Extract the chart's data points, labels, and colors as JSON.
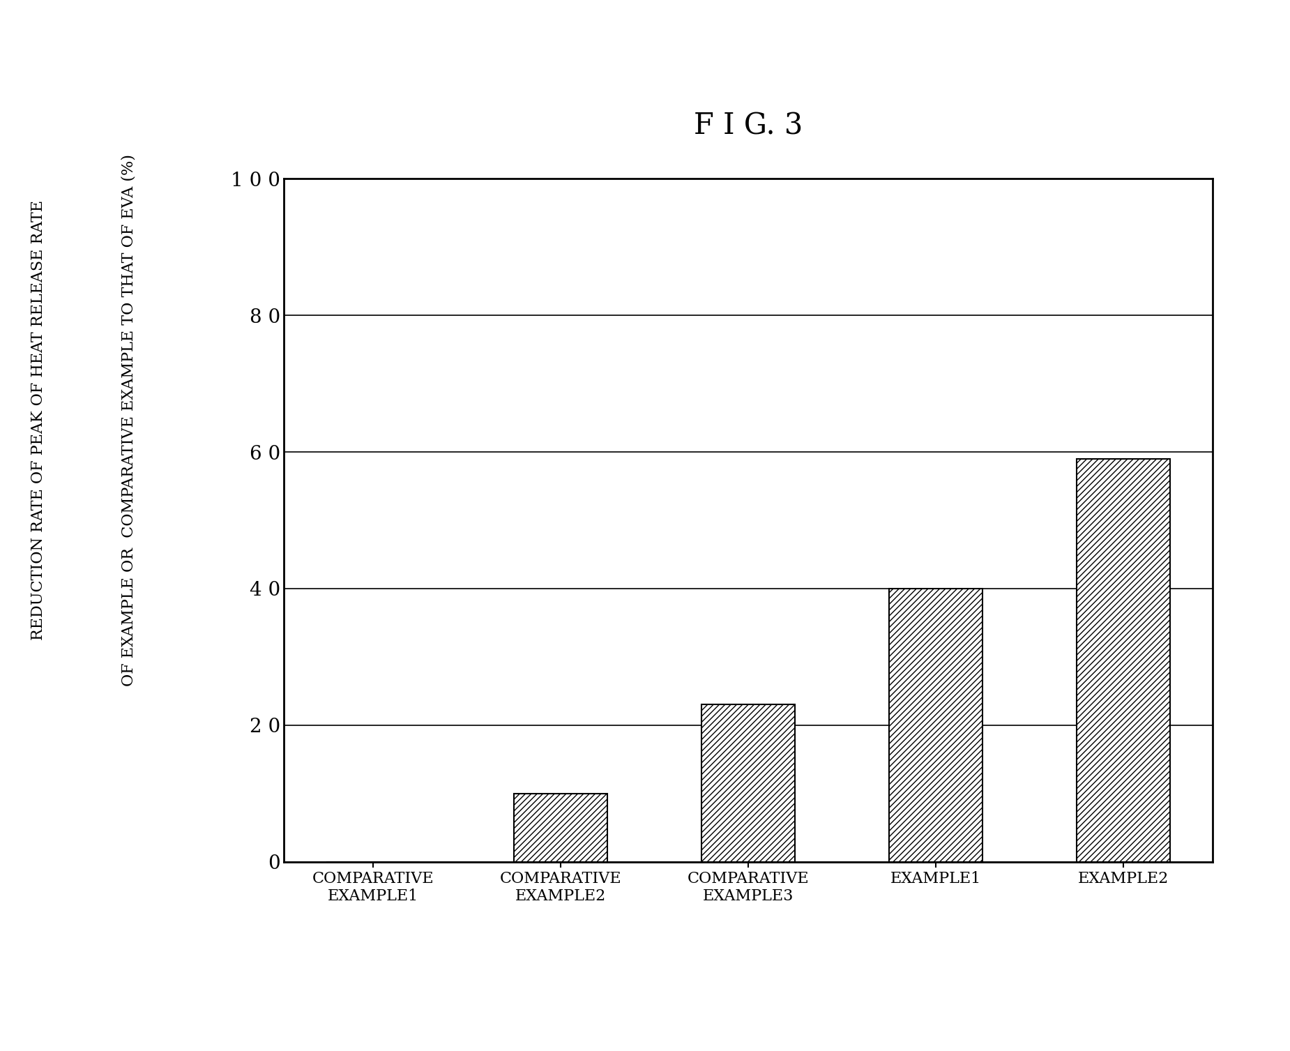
{
  "title": "F I G. 3",
  "categories": [
    "COMPARATIVE\nEXAMPLE1",
    "COMPARATIVE\nEXAMPLE2",
    "COMPARATIVE\nEXAMPLE3",
    "EXAMPLE1",
    "EXAMPLE2"
  ],
  "values": [
    0,
    10,
    23,
    40,
    59
  ],
  "ylim": [
    0,
    100
  ],
  "yticks": [
    0,
    20,
    40,
    60,
    80,
    100
  ],
  "ytick_labels": [
    "0",
    "2 0",
    "4 0",
    "6 0",
    "8 0",
    "1 0 0"
  ],
  "ylabel_line1": "REDUCTION RATE OF PEAK OF HEAT RELEASE RATE",
  "ylabel_line2": "OF EXAMPLE OR  COMPARATIVE EXAMPLE TO THAT OF EVA (%)",
  "bar_color": "#ffffff",
  "bar_edgecolor": "#000000",
  "hatch": "////",
  "background_color": "#ffffff",
  "grid_color": "#000000",
  "title_fontsize": 30,
  "tick_fontsize": 20,
  "ylabel_fontsize": 16,
  "xtick_fontsize": 16
}
